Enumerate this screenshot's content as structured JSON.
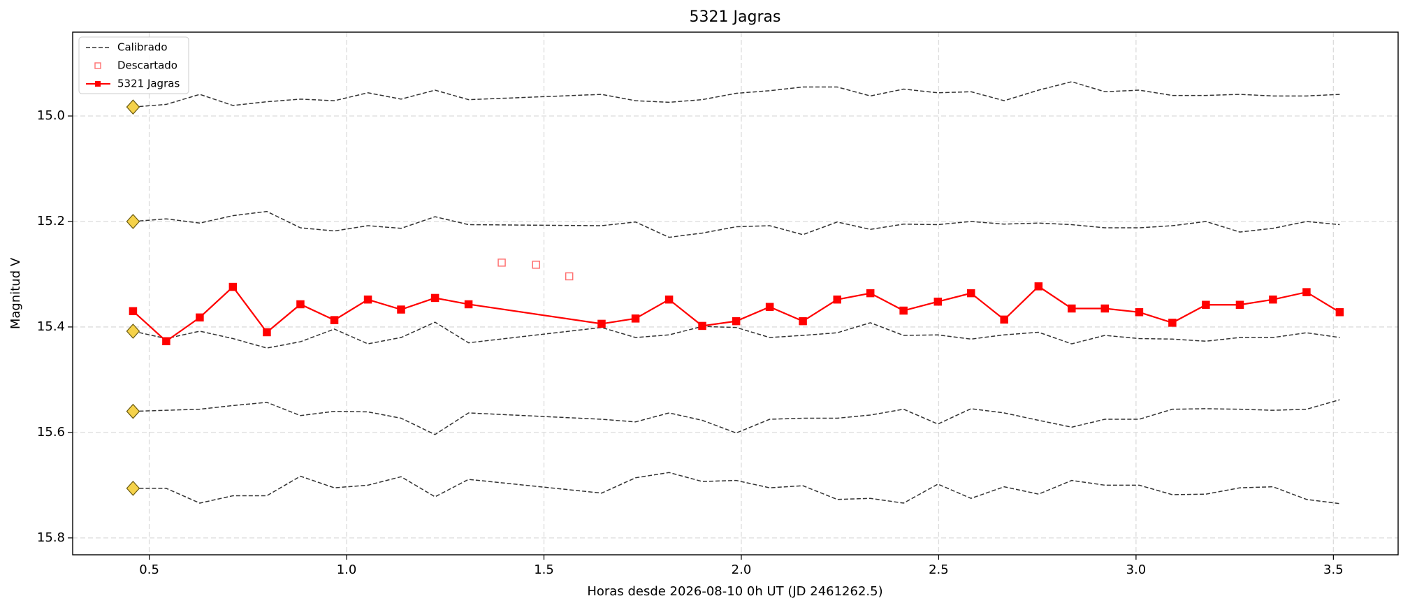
{
  "chart_data": {
    "type": "line",
    "title": "5321 Jagras",
    "xlabel": "Horas desde 2026-08-10 0h UT (JD 2461262.5)",
    "ylabel": "Magnitud V",
    "xlim": [
      0.306,
      3.664
    ],
    "ylim": [
      14.841,
      15.832
    ],
    "y_inverted": true,
    "xticks": [
      0.5,
      {
        "value": 1.0,
        "label": "1.0"
      },
      1.5,
      {
        "value": 2.0,
        "label": "2.0"
      },
      2.5,
      {
        "value": 3.0,
        "label": "3.0"
      },
      3.5
    ],
    "yticks": [
      {
        "value": 15.0,
        "label": "15.0"
      },
      15.2,
      15.4,
      15.6,
      15.8
    ],
    "grid": true,
    "legend": "upper left",
    "x": [
      0.459,
      0.543,
      0.628,
      0.712,
      0.798,
      0.883,
      0.969,
      1.054,
      1.138,
      1.224,
      1.309,
      1.646,
      1.732,
      1.817,
      1.901,
      1.987,
      2.072,
      2.156,
      2.243,
      2.327,
      2.411,
      2.498,
      2.582,
      2.666,
      2.753,
      2.837,
      2.921,
      3.008,
      3.092,
      3.177,
      3.263,
      3.347,
      3.432,
      3.516
    ],
    "series": [
      {
        "name": "Calibrado",
        "color": "#333333",
        "dashed": true,
        "start_marker_color": "#f5d24a",
        "lines": [
          [
            14.983,
            14.978,
            14.959,
            14.98,
            14.973,
            14.968,
            14.971,
            14.956,
            14.968,
            14.951,
            14.969,
            14.959,
            14.971,
            14.974,
            14.969,
            14.957,
            14.952,
            14.945,
            14.945,
            14.962,
            14.949,
            14.956,
            14.954,
            14.971,
            14.951,
            14.935,
            14.954,
            14.951,
            14.961,
            14.961,
            14.959,
            14.962,
            14.962,
            14.959
          ],
          [
            15.2,
            15.195,
            15.203,
            15.189,
            15.181,
            15.212,
            15.218,
            15.208,
            15.213,
            15.191,
            15.206,
            15.208,
            15.201,
            15.23,
            15.222,
            15.21,
            15.208,
            15.225,
            15.201,
            15.215,
            15.205,
            15.206,
            15.2,
            15.205,
            15.203,
            15.206,
            15.212,
            15.212,
            15.208,
            15.2,
            15.22,
            15.213,
            15.2,
            15.206
          ],
          [
            15.408,
            15.422,
            15.408,
            15.422,
            15.44,
            15.428,
            15.404,
            15.432,
            15.42,
            15.391,
            15.43,
            15.401,
            15.42,
            15.415,
            15.399,
            15.401,
            15.42,
            15.416,
            15.411,
            15.392,
            15.416,
            15.415,
            15.423,
            15.415,
            15.41,
            15.432,
            15.416,
            15.422,
            15.423,
            15.427,
            15.42,
            15.42,
            15.411,
            15.42
          ],
          [
            15.56,
            15.558,
            15.556,
            15.549,
            15.543,
            15.568,
            15.56,
            15.561,
            15.573,
            15.604,
            15.563,
            15.575,
            15.58,
            15.563,
            15.577,
            15.601,
            15.575,
            15.573,
            15.573,
            15.567,
            15.556,
            15.584,
            15.555,
            15.563,
            15.577,
            15.59,
            15.575,
            15.575,
            15.556,
            15.555,
            15.556,
            15.558,
            15.556,
            15.538
          ],
          [
            15.706,
            15.706,
            15.734,
            15.72,
            15.72,
            15.683,
            15.705,
            15.7,
            15.684,
            15.722,
            15.689,
            15.715,
            15.686,
            15.676,
            15.693,
            15.691,
            15.705,
            15.701,
            15.727,
            15.725,
            15.734,
            15.698,
            15.725,
            15.703,
            15.717,
            15.691,
            15.7,
            15.7,
            15.718,
            15.717,
            15.705,
            15.703,
            15.727,
            15.735
          ]
        ]
      },
      {
        "name": "Descartado",
        "color": "#ff7070",
        "x": [
          1.393,
          1.48,
          1.564
        ],
        "values": [
          15.278,
          15.282,
          15.304
        ]
      },
      {
        "name": "5321 Jagras",
        "color": "#ff0000",
        "values": [
          15.37,
          15.427,
          15.382,
          15.324,
          15.41,
          15.357,
          15.387,
          15.348,
          15.367,
          15.345,
          15.357,
          15.394,
          15.384,
          15.348,
          15.398,
          15.389,
          15.362,
          15.389,
          15.348,
          15.336,
          15.369,
          15.352,
          15.336,
          15.386,
          15.323,
          15.365,
          15.365,
          15.372,
          15.392,
          15.358,
          15.358,
          15.348,
          15.334,
          15.372
        ]
      }
    ]
  }
}
